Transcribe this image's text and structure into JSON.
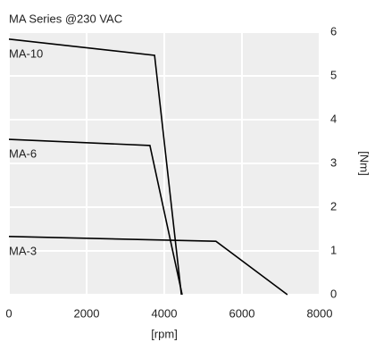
{
  "chart_data": {
    "type": "line",
    "title": "MA Series @230 VAC",
    "x_label": "[rpm]",
    "y_label": "[Nm]",
    "xlim": [
      0,
      8000
    ],
    "xticks": [
      0,
      2000,
      4000,
      6000,
      8000
    ],
    "ylim": [
      0,
      6
    ],
    "yticks": [
      0,
      1,
      2,
      3,
      4,
      5,
      6
    ],
    "y_axis_side": "right",
    "grid": true,
    "series": [
      {
        "name": "MA-10",
        "color": "#000000",
        "x": [
          0,
          3750,
          4440
        ],
        "values": [
          5.84,
          5.47,
          0
        ]
      },
      {
        "name": "MA-6",
        "color": "#000000",
        "x": [
          0,
          3630,
          4460
        ],
        "values": [
          3.55,
          3.41,
          0
        ]
      },
      {
        "name": "MA-3",
        "color": "#000000",
        "x": [
          0,
          5330,
          7170
        ],
        "values": [
          1.33,
          1.22,
          0
        ]
      }
    ]
  }
}
